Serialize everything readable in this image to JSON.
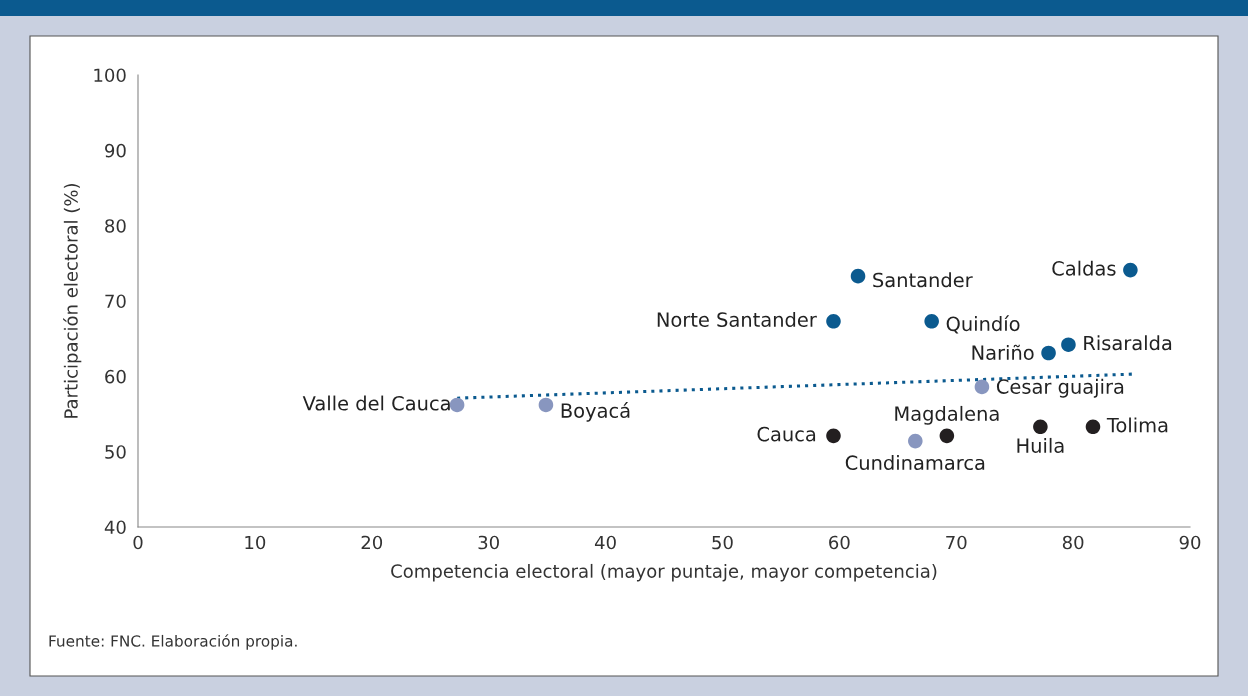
{
  "chart_data": {
    "type": "scatter",
    "xlabel": "Competencia electoral (mayor puntaje, mayor competencia)",
    "ylabel": "Participación electoral (%)",
    "xlim": [
      0,
      90
    ],
    "xticks": [
      0,
      10,
      20,
      30,
      40,
      50,
      60,
      70,
      80,
      90
    ],
    "ylim": [
      40,
      100
    ],
    "yticks": [
      40,
      50,
      60,
      70,
      80,
      90,
      100
    ],
    "grid": false,
    "legend": false,
    "marker": "circle",
    "series": [
      {
        "color": "#0b5a8f",
        "x": [
          59.5,
          61.6,
          67.9,
          77.9,
          79.6,
          84.9
        ],
        "values": [
          67.3,
          73.3,
          67.3,
          63.1,
          64.2,
          74.1
        ]
      },
      {
        "color": "#8896bf",
        "x": [
          27.3,
          34.9,
          72.2,
          66.5
        ],
        "values": [
          56.2,
          56.2,
          58.6,
          51.4
        ]
      },
      {
        "color": "#231f20",
        "x": [
          59.5,
          69.2,
          77.2,
          81.7
        ],
        "values": [
          52.1,
          52.1,
          53.3,
          53.3
        ]
      },
      {
        "type": "line",
        "color": "#0b5a8f",
        "line_style": "dotted",
        "marker": "none",
        "x": [
          27.3,
          85.2
        ],
        "values": [
          57.1,
          60.3
        ]
      }
    ],
    "annotations": [
      {
        "text": "Norte Santander",
        "x": 59.5,
        "y": 67.3
      },
      {
        "text": "Santander",
        "x": 61.6,
        "y": 73.3
      },
      {
        "text": "Quindío",
        "x": 67.9,
        "y": 67.3
      },
      {
        "text": "Nariño",
        "x": 77.9,
        "y": 63.1
      },
      {
        "text": "Risaralda",
        "x": 79.6,
        "y": 64.2
      },
      {
        "text": "Caldas",
        "x": 84.9,
        "y": 74.1
      },
      {
        "text": "Valle del Cauca",
        "x": 27.3,
        "y": 56.2
      },
      {
        "text": "Boyacá",
        "x": 34.9,
        "y": 56.2
      },
      {
        "text": "Cesar guajira",
        "x": 72.2,
        "y": 58.6
      },
      {
        "text": "Cundinamarca",
        "x": 66.5,
        "y": 51.4
      },
      {
        "text": "Cauca",
        "x": 59.5,
        "y": 52.1
      },
      {
        "text": "Magdalena",
        "x": 69.2,
        "y": 52.1
      },
      {
        "text": "Huila",
        "x": 77.2,
        "y": 53.3
      },
      {
        "text": "Tolima",
        "x": 81.7,
        "y": 53.3
      },
      "Fuente: FNC. Elaboración propia."
    ]
  }
}
